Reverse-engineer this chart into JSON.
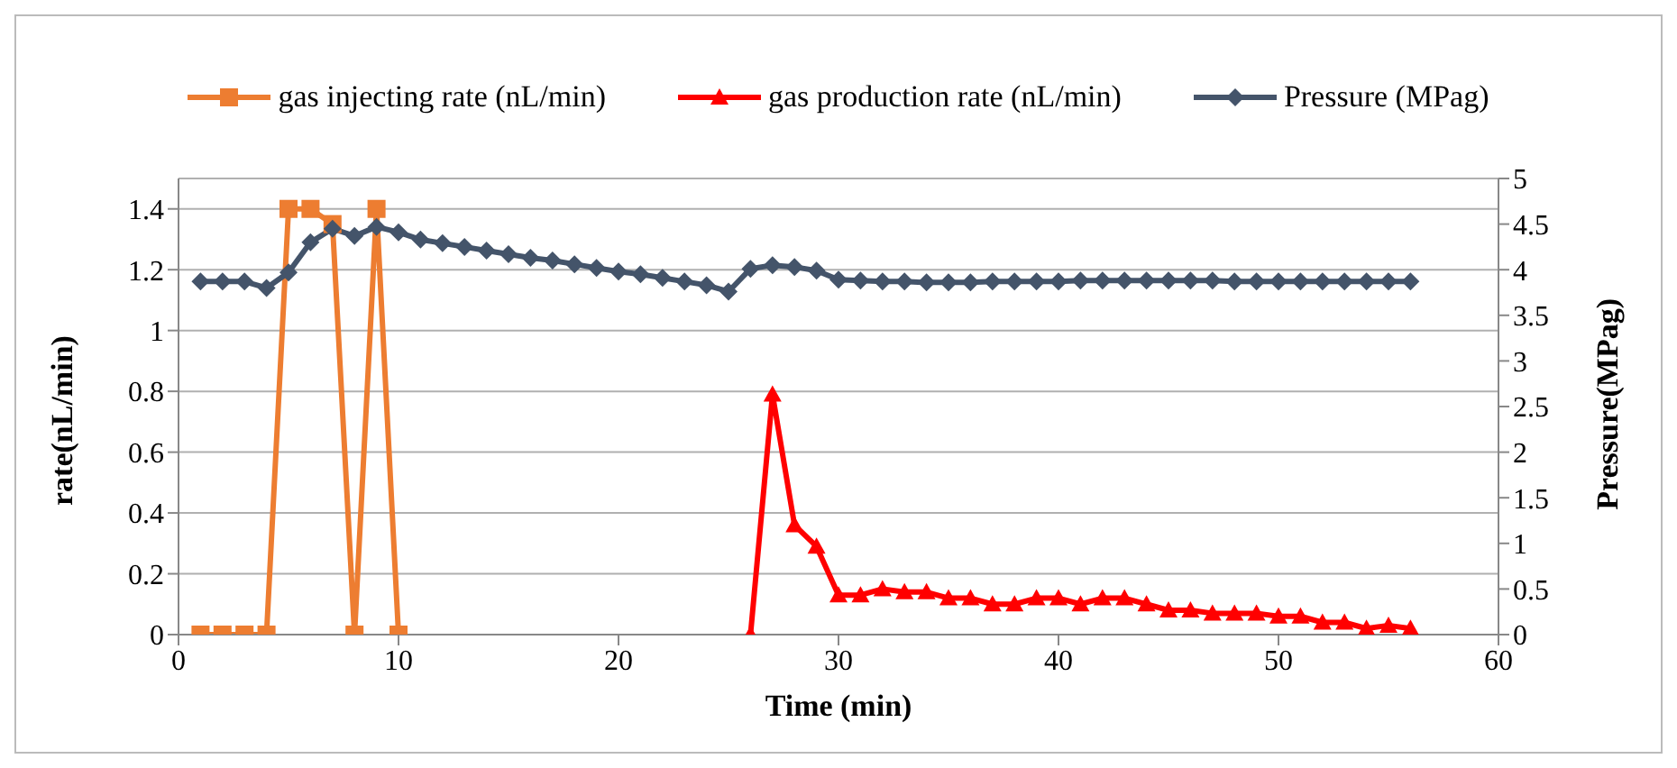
{
  "chart_data": {
    "type": "line",
    "xlabel": "Time (min)",
    "ylabel": "rate(nL/min)",
    "y2label": "Pressure(MPag)",
    "xlim": [
      0,
      60
    ],
    "xticks": [
      0,
      10,
      20,
      30,
      40,
      50,
      60
    ],
    "ylim": [
      0,
      1.5
    ],
    "yticks": [
      0,
      0.2,
      0.4,
      0.6,
      0.8,
      1,
      1.2,
      1.4
    ],
    "y2lim": [
      0,
      5
    ],
    "y2ticks": [
      0,
      0.5,
      1,
      1.5,
      2,
      2.5,
      3,
      3.5,
      4,
      4.5,
      5
    ],
    "grid": "y",
    "legend": "top",
    "line_style": "solid",
    "series": [
      {
        "name": "gas injecting rate (nL/min)",
        "color": "#ed7d31",
        "marker": "square",
        "x": [
          1,
          2,
          3,
          4,
          5,
          6,
          7,
          8,
          9,
          10
        ],
        "values": [
          0,
          0,
          0,
          0,
          1.4,
          1.4,
          1.35,
          0,
          1.4,
          0
        ]
      },
      {
        "name": "gas production rate (nL/min)",
        "color": "#ff0000",
        "marker": "triangle",
        "x": [
          26,
          27,
          28,
          29,
          30,
          31,
          32,
          33,
          34,
          35,
          36,
          37,
          38,
          39,
          40,
          41,
          42,
          43,
          44,
          45,
          46,
          47,
          48,
          49,
          50,
          51,
          52,
          53,
          54,
          55,
          56
        ],
        "values": [
          0,
          0.79,
          0.36,
          0.29,
          0.13,
          0.13,
          0.15,
          0.14,
          0.14,
          0.12,
          0.12,
          0.1,
          0.1,
          0.12,
          0.12,
          0.1,
          0.12,
          0.12,
          0.1,
          0.08,
          0.08,
          0.07,
          0.07,
          0.07,
          0.06,
          0.06,
          0.04,
          0.04,
          0.02,
          0.03,
          0.02
        ]
      },
      {
        "name": "Pressure (MPag)",
        "color": "#44546a",
        "marker": "diamond",
        "axis": "y2",
        "x": [
          1,
          2,
          3,
          4,
          5,
          6,
          7,
          8,
          9,
          10,
          11,
          12,
          13,
          14,
          15,
          16,
          17,
          18,
          19,
          20,
          21,
          22,
          23,
          24,
          25,
          26,
          27,
          28,
          29,
          30,
          31,
          32,
          33,
          34,
          35,
          36,
          37,
          38,
          39,
          40,
          41,
          42,
          43,
          44,
          45,
          46,
          47,
          48,
          49,
          50,
          51,
          52,
          53,
          54,
          55,
          56
        ],
        "values": [
          3.87,
          3.87,
          3.87,
          3.8,
          3.97,
          4.3,
          4.45,
          4.37,
          4.47,
          4.41,
          4.33,
          4.29,
          4.25,
          4.21,
          4.17,
          4.13,
          4.1,
          4.06,
          4.02,
          3.98,
          3.95,
          3.91,
          3.87,
          3.83,
          3.76,
          4.01,
          4.05,
          4.03,
          3.99,
          3.89,
          3.88,
          3.87,
          3.87,
          3.86,
          3.86,
          3.86,
          3.87,
          3.87,
          3.87,
          3.87,
          3.88,
          3.88,
          3.88,
          3.88,
          3.88,
          3.88,
          3.88,
          3.87,
          3.87,
          3.87,
          3.87,
          3.87,
          3.87,
          3.87,
          3.87,
          3.87
        ]
      }
    ]
  }
}
